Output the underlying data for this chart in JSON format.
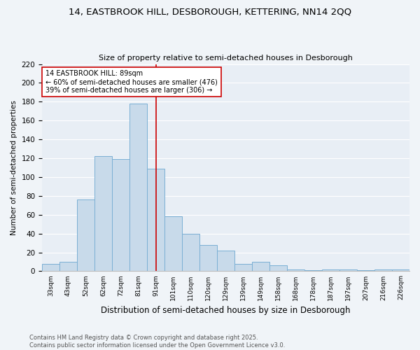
{
  "title1": "14, EASTBROOK HILL, DESBOROUGH, KETTERING, NN14 2QQ",
  "title2": "Size of property relative to semi-detached houses in Desborough",
  "xlabel": "Distribution of semi-detached houses by size in Desborough",
  "ylabel": "Number of semi-detached properties",
  "categories": [
    "33sqm",
    "43sqm",
    "52sqm",
    "62sqm",
    "72sqm",
    "81sqm",
    "91sqm",
    "101sqm",
    "110sqm",
    "120sqm",
    "129sqm",
    "139sqm",
    "149sqm",
    "158sqm",
    "168sqm",
    "178sqm",
    "187sqm",
    "197sqm",
    "207sqm",
    "216sqm",
    "226sqm"
  ],
  "values": [
    8,
    10,
    76,
    122,
    119,
    178,
    109,
    58,
    40,
    28,
    22,
    8,
    10,
    6,
    2,
    1,
    2,
    2,
    1,
    2,
    2
  ],
  "bar_color": "#c8daea",
  "bar_edge_color": "#7aafd4",
  "bg_color": "#e8eef5",
  "grid_color": "#ffffff",
  "vline_color": "#cc0000",
  "annotation_text": "14 EASTBROOK HILL: 89sqm\n← 60% of semi-detached houses are smaller (476)\n39% of semi-detached houses are larger (306) →",
  "annotation_box_color": "#ffffff",
  "annotation_box_edge": "#cc0000",
  "footer": "Contains HM Land Registry data © Crown copyright and database right 2025.\nContains public sector information licensed under the Open Government Licence v3.0.",
  "ylim": [
    0,
    220
  ],
  "yticks": [
    0,
    20,
    40,
    60,
    80,
    100,
    120,
    140,
    160,
    180,
    200,
    220
  ]
}
